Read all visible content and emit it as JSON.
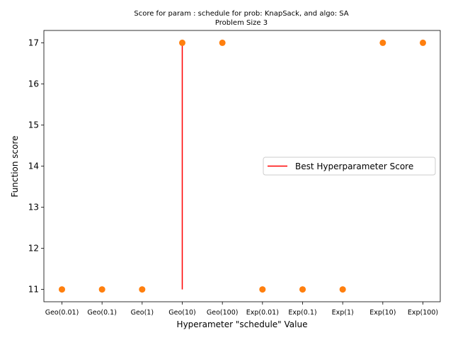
{
  "chart_data": {
    "type": "scatter",
    "title": "Score for param : schedule for prob: KnapSack, and algo: SA",
    "subtitle": "Problem Size 3",
    "xlabel": "Hyperameter \"schedule\" Value",
    "ylabel": "Function score",
    "categories": [
      "Geo(0.01)",
      "Geo(0.1)",
      "Geo(1)",
      "Geo(10)",
      "Geo(100)",
      "Exp(0.01)",
      "Exp(0.1)",
      "Exp(1)",
      "Exp(10)",
      "Exp(100)"
    ],
    "values": [
      11,
      11,
      11,
      17,
      17,
      11,
      11,
      11,
      17,
      17
    ],
    "yticks": [
      11,
      12,
      13,
      14,
      15,
      16,
      17
    ],
    "ylim": [
      10.7,
      17.3
    ],
    "best_line": {
      "category": "Geo(10)",
      "from": 11,
      "to": 17
    },
    "legend": {
      "placement": "center-right",
      "entries": [
        "Best Hyperparameter Score"
      ]
    },
    "grid": false,
    "colors": {
      "points": "#ff7f0e",
      "best_line": "#ff0000"
    }
  }
}
